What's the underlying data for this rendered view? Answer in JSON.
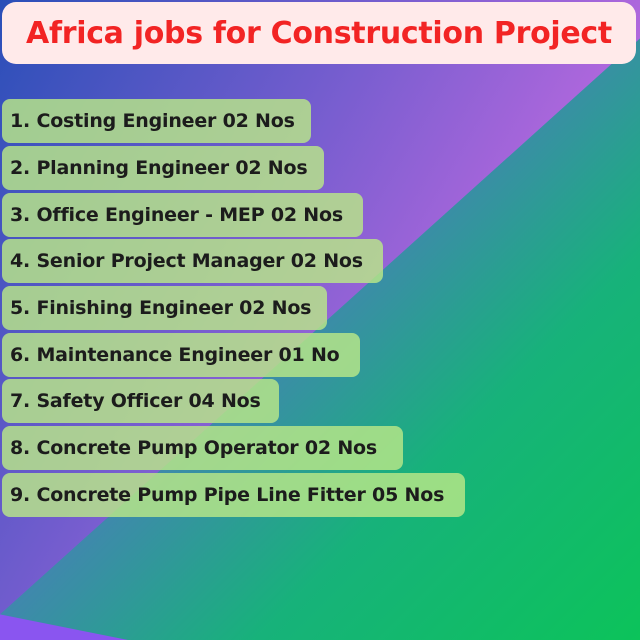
{
  "title": "Africa jobs for Construction Project",
  "colors": {
    "title_text": "#f22424",
    "title_bg": "#ffeaea",
    "item_bg": "#b9e887"
  },
  "jobs": [
    "1. Costing Engineer 02 Nos",
    "2. Planning Engineer 02 Nos",
    "3. Office Engineer - MEP 02 Nos",
    "4. Senior Project Manager 02 Nos",
    "5. Finishing Engineer 02 Nos",
    "6. Maintenance Engineer 01 No",
    "7. Safety Officer 04 Nos",
    "8. Concrete Pump Operator 02 Nos",
    "9. Concrete Pump Pipe Line Fitter 05 Nos"
  ]
}
